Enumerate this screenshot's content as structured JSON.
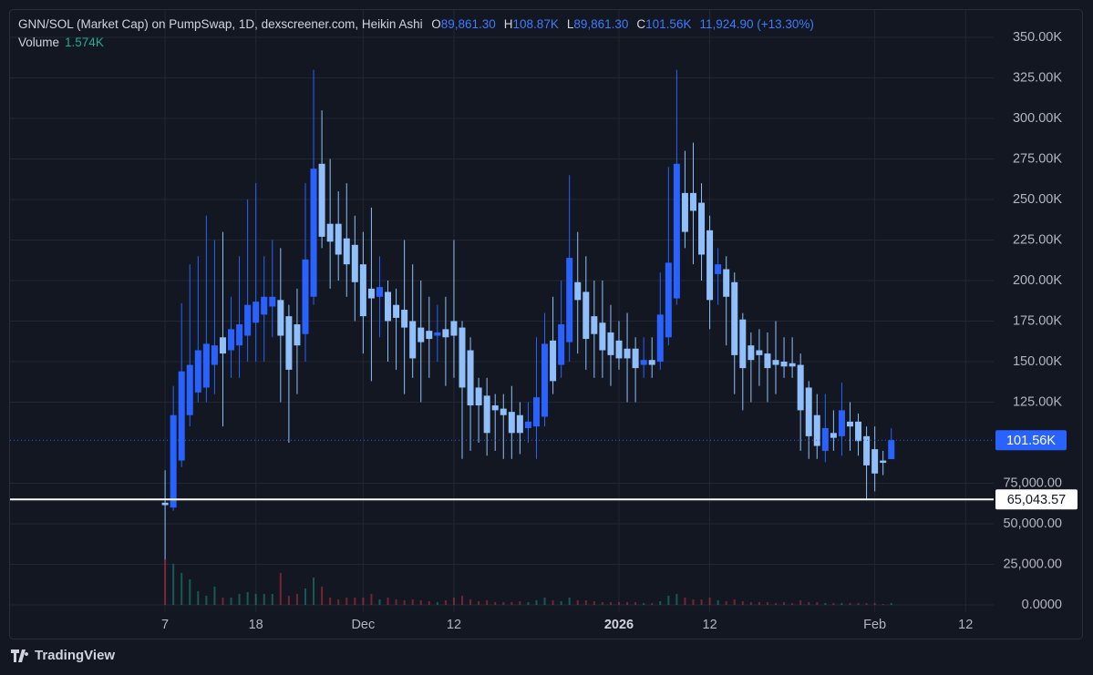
{
  "chart_data": {
    "type": "candlestick",
    "title": "GNN/SOL (Market Cap) on PumpSwap, 1D, dexscreener.com, Heikin Ashi",
    "ohlc_letters": [
      "O",
      "H",
      "L",
      "C"
    ],
    "ohlc_texts": [
      "89,861.30",
      "108.87K",
      "89,861.30",
      "101.56K"
    ],
    "change_text": "11,924.90 (+13.30%)",
    "x": [
      0,
      1,
      2,
      3,
      4,
      5,
      6,
      7,
      8,
      9,
      10,
      11,
      12,
      13,
      14,
      15,
      16,
      17,
      18,
      19,
      20,
      21,
      22,
      23,
      24,
      25,
      26,
      27,
      28,
      29,
      30,
      31,
      32,
      33,
      34,
      35,
      36,
      37,
      38,
      39,
      40,
      41,
      42,
      43,
      44,
      45,
      46,
      47,
      48,
      49,
      50,
      51,
      52,
      53,
      54,
      55,
      56,
      57,
      58,
      59,
      60,
      61,
      62,
      63,
      64,
      65,
      66,
      67,
      68,
      69,
      70,
      71,
      72,
      73,
      74,
      75,
      76,
      77,
      78,
      79,
      80,
      81,
      82,
      83,
      84,
      85,
      86,
      87,
      88
    ],
    "open": [
      63000,
      60000,
      89000,
      117000,
      131000,
      134000,
      148000,
      165000,
      157000,
      160000,
      166000,
      174000,
      179000,
      184000,
      188000,
      178000,
      173000,
      167000,
      190000,
      272000,
      235000,
      235000,
      226000,
      222000,
      210000,
      195000,
      190000,
      193000,
      185000,
      182000,
      175000,
      171000,
      169000,
      166000,
      170000,
      175000,
      171000,
      157000,
      134000,
      129000,
      123000,
      121000,
      119000,
      117000,
      109000,
      110000,
      116000,
      163000,
      148000,
      162000,
      199000,
      193000,
      178000,
      174000,
      168000,
      163000,
      158000,
      158000,
      148000,
      151000,
      150000,
      165000,
      189000,
      254000,
      254000,
      248000,
      231000,
      204000,
      207000,
      199000,
      176000,
      160000,
      157000,
      155000,
      151000,
      150000,
      149000,
      148000,
      134000,
      117000,
      95000,
      106000,
      104000,
      113000,
      113000,
      104000,
      96000,
      89000,
      89861.3
    ],
    "high": [
      83000,
      135000,
      186000,
      210000,
      215000,
      240000,
      225000,
      230000,
      190000,
      215000,
      250000,
      260000,
      215000,
      225000,
      220000,
      185000,
      195000,
      260000,
      330000,
      305000,
      275000,
      255000,
      260000,
      240000,
      230000,
      245000,
      215000,
      200000,
      195000,
      225000,
      210000,
      200000,
      190000,
      185000,
      190000,
      225000,
      175000,
      165000,
      140000,
      140000,
      130000,
      130000,
      135000,
      125000,
      125000,
      165000,
      180000,
      190000,
      200000,
      265000,
      230000,
      215000,
      200000,
      200000,
      185000,
      175000,
      180000,
      165000,
      165000,
      165000,
      205000,
      270000,
      330000,
      280000,
      285000,
      260000,
      240000,
      220000,
      215000,
      205000,
      180000,
      168000,
      170000,
      168000,
      175000,
      165000,
      165000,
      155000,
      138000,
      130000,
      130000,
      120000,
      137000,
      125000,
      118000,
      110000,
      110000,
      95000,
      108870
    ],
    "low": [
      28000,
      58000,
      85000,
      110000,
      125000,
      125000,
      130000,
      110000,
      140000,
      140000,
      150000,
      150000,
      150000,
      165000,
      125000,
      100000,
      130000,
      150000,
      185000,
      220000,
      195000,
      200000,
      190000,
      175000,
      155000,
      138000,
      165000,
      150000,
      145000,
      130000,
      140000,
      125000,
      140000,
      150000,
      135000,
      140000,
      90000,
      95000,
      100000,
      92000,
      95000,
      90000,
      90000,
      93000,
      100000,
      90000,
      110000,
      130000,
      140000,
      150000,
      155000,
      145000,
      140000,
      140000,
      135000,
      145000,
      125000,
      125000,
      140000,
      140000,
      145000,
      160000,
      185000,
      220000,
      210000,
      200000,
      170000,
      185000,
      160000,
      130000,
      120000,
      125000,
      135000,
      125000,
      130000,
      140000,
      140000,
      95000,
      90000,
      90000,
      88000,
      95000,
      92000,
      95000,
      92000,
      65043.57,
      70000,
      80000,
      89861.3
    ],
    "close": [
      61500,
      117000,
      144000,
      148000,
      157000,
      161000,
      160000,
      155000,
      170000,
      173000,
      185000,
      187000,
      190000,
      190000,
      166000,
      145000,
      160000,
      213000,
      269000,
      227000,
      224000,
      216000,
      210000,
      199000,
      178000,
      189000,
      196000,
      175000,
      177000,
      171000,
      152000,
      162000,
      164000,
      168000,
      165000,
      166000,
      134000,
      123000,
      123000,
      106000,
      120000,
      117000,
      106000,
      106000,
      113000,
      128000,
      161000,
      138000,
      173000,
      214000,
      188000,
      164000,
      167000,
      157000,
      154000,
      152000,
      152000,
      146000,
      151000,
      148000,
      179000,
      211000,
      272000,
      230000,
      243000,
      216000,
      188000,
      210000,
      190000,
      154000,
      146000,
      151000,
      154000,
      146000,
      148000,
      147000,
      147000,
      120000,
      104000,
      98000,
      109000,
      103000,
      120000,
      110000,
      101000,
      86000,
      81000,
      87600,
      101560
    ],
    "up_color": "#2962ff",
    "down_color": "#90bff9",
    "volume": {
      "name": "Volume",
      "label": "1.574K",
      "up_color": "#22ab94",
      "down_color": "#f23645",
      "values": [
        40,
        36,
        28,
        22.4,
        12,
        8,
        16,
        6.4,
        6.4,
        9.6,
        11.2,
        9.6,
        9.6,
        9.6,
        28,
        8,
        9.6,
        14.4,
        24,
        16,
        6.4,
        4.8,
        6.4,
        6.4,
        6.4,
        9.6,
        4.8,
        6.4,
        4.8,
        4,
        4.8,
        4,
        3.2,
        2.4,
        4,
        6.4,
        8,
        4.8,
        3.2,
        4,
        2.4,
        2.4,
        2.4,
        3.2,
        2.4,
        4,
        6.4,
        4,
        3.2,
        6.4,
        4,
        4,
        3.2,
        2.4,
        2.4,
        2.4,
        2.4,
        2.4,
        1.6,
        1.6,
        3.2,
        8,
        9.6,
        6.4,
        4.8,
        4.8,
        6.4,
        4,
        3.2,
        4.8,
        3.2,
        2.4,
        2.4,
        2.4,
        1.6,
        2.4,
        1.6,
        4,
        2.4,
        2.4,
        1.6,
        1.6,
        1.6,
        1.6,
        1.6,
        1.6,
        1.6,
        0.8,
        1.574
      ]
    },
    "xlim": [
      -18.9,
      100.4
    ],
    "xticks": [
      {
        "value": 0,
        "label": "7"
      },
      {
        "value": 11,
        "label": "18"
      },
      {
        "value": 24,
        "label": "Dec"
      },
      {
        "value": 35,
        "label": "12"
      },
      {
        "value": 55,
        "label": "2026"
      },
      {
        "value": 66,
        "label": "12"
      },
      {
        "value": 86,
        "label": "Feb"
      },
      {
        "value": 97,
        "label": "12"
      }
    ],
    "ylim": [
      -4500,
      367400
    ],
    "yticks": [
      {
        "value": 0,
        "label": "0.0000"
      },
      {
        "value": 25000,
        "label": "25,000.00"
      },
      {
        "value": 50000,
        "label": "50,000.00"
      },
      {
        "value": 75000,
        "label": "75,000.00"
      },
      {
        "value": 125000,
        "label": "125.00K"
      },
      {
        "value": 150000,
        "label": "150.00K"
      },
      {
        "value": 175000,
        "label": "175.00K"
      },
      {
        "value": 200000,
        "label": "200.00K"
      },
      {
        "value": 225000,
        "label": "225.00K"
      },
      {
        "value": 250000,
        "label": "250.00K"
      },
      {
        "value": 275000,
        "label": "275.00K"
      },
      {
        "value": 300000,
        "label": "300.00K"
      },
      {
        "value": 325000,
        "label": "325.00K"
      },
      {
        "value": 350000,
        "label": "350.00K"
      }
    ],
    "grid": true,
    "last_price": {
      "value": 101560,
      "label": "101.56K",
      "color": "#2962ff"
    },
    "hline": {
      "value": 65043.57,
      "label": "65,043.57",
      "color": "#ffffff"
    }
  },
  "footer": {
    "brand": "TradingView"
  }
}
